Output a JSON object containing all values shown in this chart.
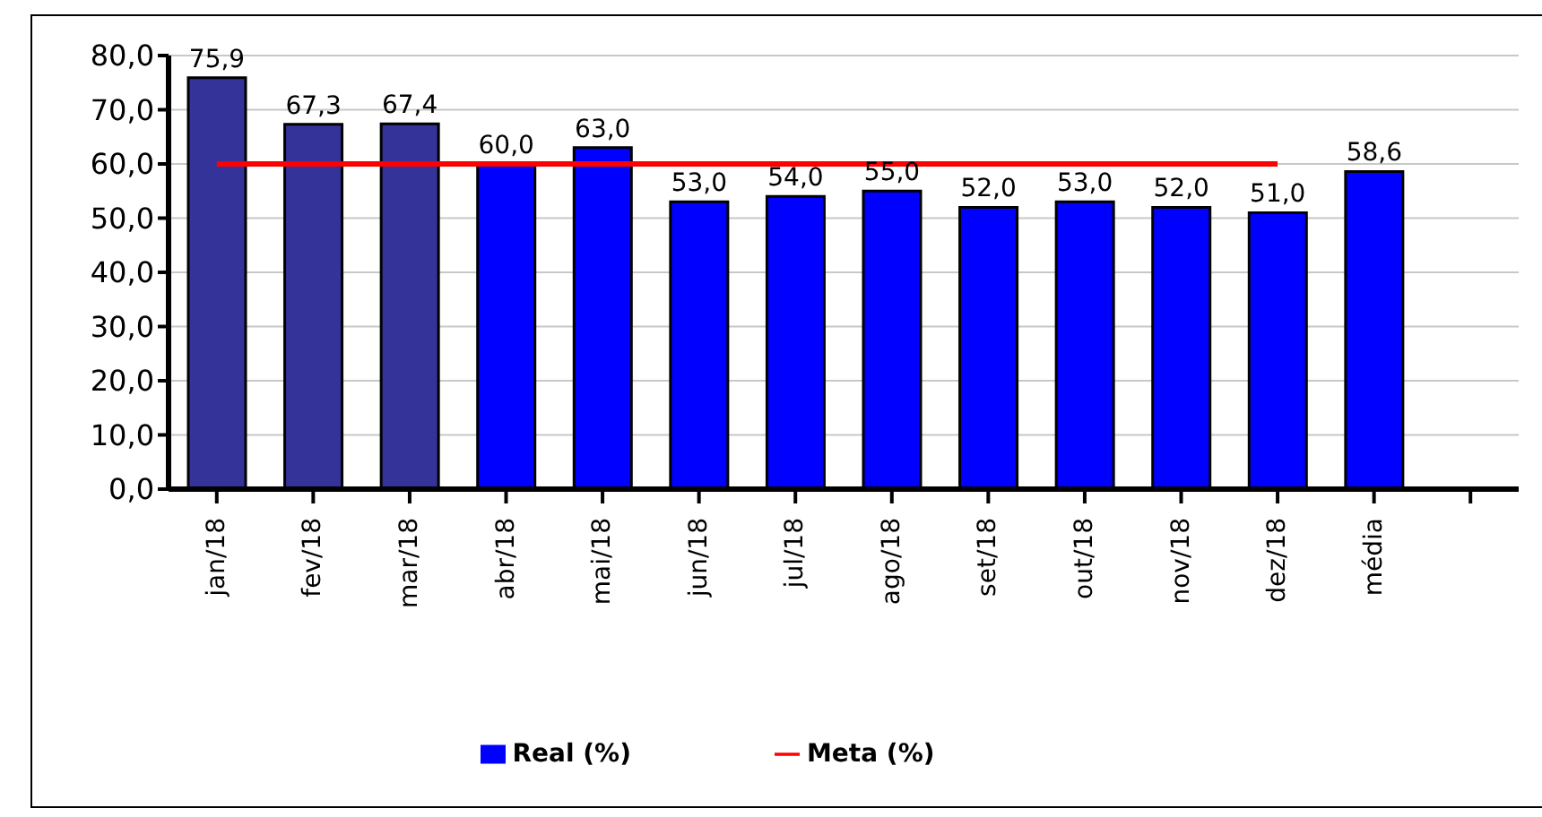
{
  "chart_data": {
    "type": "bar",
    "categories": [
      "jan/18",
      "fev/18",
      "mar/18",
      "abr/18",
      "mai/18",
      "jun/18",
      "jul/18",
      "ago/18",
      "set/18",
      "out/18",
      "nov/18",
      "dez/18",
      "média",
      null
    ],
    "series": [
      {
        "name": "Real (%)",
        "color": "#0000ff",
        "colors": [
          "#333399",
          "#333399",
          "#333399",
          "#0000ff",
          "#0000ff",
          "#0000ff",
          "#0000ff",
          "#0000ff",
          "#0000ff",
          "#0000ff",
          "#0000ff",
          "#0000ff",
          "#0000ff",
          null
        ],
        "values": [
          75.9,
          67.3,
          67.4,
          60.0,
          63.0,
          53.0,
          54.0,
          55.0,
          52.0,
          53.0,
          52.0,
          51.0,
          58.6,
          null
        ],
        "value_labels": [
          "75,9",
          "67,3",
          "67,4",
          "60,0",
          "63,0",
          "53,0",
          "54,0",
          "55,0",
          "52,0",
          "53,0",
          "52,0",
          "51,0",
          "58,6",
          null
        ]
      },
      {
        "name": "Meta (%)",
        "type": "line",
        "color": "#ff0000",
        "values": [
          60,
          60,
          60,
          60,
          60,
          60,
          60,
          60,
          60,
          60,
          60,
          60,
          null,
          null
        ]
      }
    ],
    "ylim": [
      0,
      80
    ],
    "yticks": [
      {
        "value": 0,
        "label": "0,0"
      },
      {
        "value": 10,
        "label": "10,0"
      },
      {
        "value": 20,
        "label": "20,0"
      },
      {
        "value": 30,
        "label": "30,0"
      },
      {
        "value": 40,
        "label": "40,0"
      },
      {
        "value": 50,
        "label": "50,0"
      },
      {
        "value": 60,
        "label": "60,0"
      },
      {
        "value": 70,
        "label": "70,0"
      },
      {
        "value": 80,
        "label": "80,0"
      }
    ],
    "grid": "y",
    "legend": "bottom",
    "marker": "none"
  }
}
